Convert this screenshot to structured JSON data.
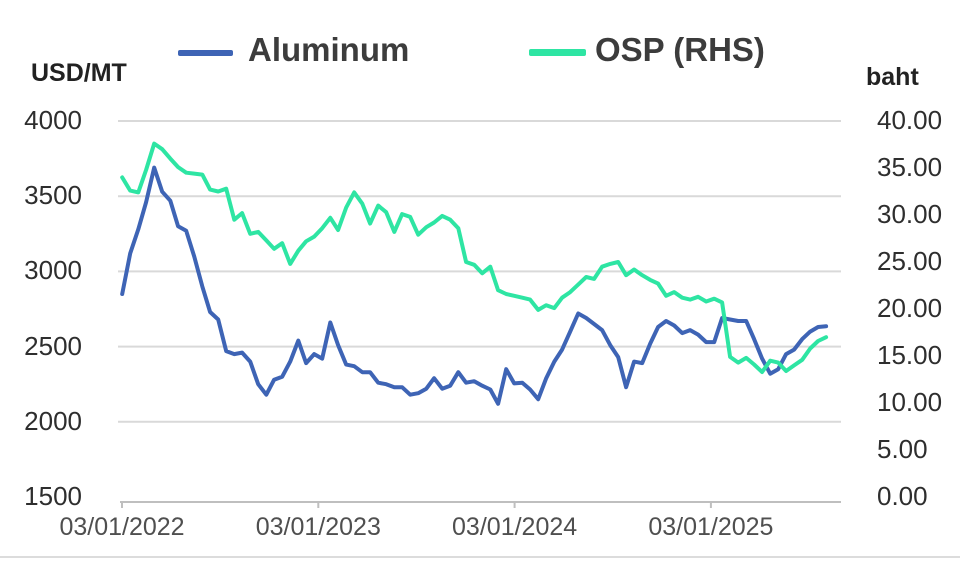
{
  "legend": {
    "items": [
      {
        "label": "Aluminum",
        "color": "#3e64b5"
      },
      {
        "label": "OSP (RHS)",
        "color": "#2ee5a3"
      }
    ]
  },
  "axes": {
    "left": {
      "unit": "USD/MT",
      "tick_labels": [
        "4000",
        "3500",
        "3000",
        "2500",
        "2000",
        "1500"
      ],
      "tick_values": [
        4000,
        3500,
        3000,
        2500,
        2000,
        1500
      ],
      "range": [
        1500,
        4000
      ]
    },
    "right": {
      "unit": "baht",
      "tick_labels": [
        "40.00",
        "35.00",
        "30.00",
        "25.00",
        "20.00",
        "15.00",
        "10.00",
        "5.00",
        "0.00"
      ],
      "tick_values": [
        40,
        35,
        30,
        25,
        20,
        15,
        10,
        5,
        0
      ],
      "range": [
        0,
        40
      ]
    },
    "x": {
      "tick_labels": [
        "03/01/2022",
        "03/01/2023",
        "03/01/2024",
        "03/01/2025"
      ],
      "tick_years": [
        2022.163,
        2023.163,
        2024.163,
        2025.163
      ]
    }
  },
  "chart_data": {
    "type": "line",
    "title": "",
    "xlabel": "",
    "grid": true,
    "legend_position": "top",
    "left_ylim": [
      1500,
      4000
    ],
    "right_ylim": [
      0,
      40
    ],
    "x_years": [
      2022.164,
      2022.205,
      2022.246,
      2022.286,
      2022.327,
      2022.368,
      2022.409,
      2022.449,
      2022.49,
      2022.531,
      2022.572,
      2022.612,
      2022.653,
      2022.694,
      2022.735,
      2022.775,
      2022.816,
      2022.857,
      2022.898,
      2022.938,
      2022.979,
      2023.02,
      2023.061,
      2023.101,
      2023.142,
      2023.183,
      2023.224,
      2023.264,
      2023.305,
      2023.346,
      2023.387,
      2023.427,
      2023.468,
      2023.509,
      2023.55,
      2023.59,
      2023.631,
      2023.672,
      2023.713,
      2023.753,
      2023.794,
      2023.835,
      2023.876,
      2023.916,
      2023.957,
      2023.998,
      2024.039,
      2024.079,
      2024.12,
      2024.161,
      2024.202,
      2024.242,
      2024.283,
      2024.324,
      2024.365,
      2024.405,
      2024.446,
      2024.487,
      2024.528,
      2024.568,
      2024.609,
      2024.65,
      2024.691,
      2024.731,
      2024.772,
      2024.813,
      2024.854,
      2024.894,
      2024.935,
      2024.976,
      2025.017,
      2025.057,
      2025.098,
      2025.139,
      2025.18,
      2025.22,
      2025.261,
      2025.302,
      2025.343,
      2025.383,
      2025.424,
      2025.465,
      2025.506,
      2025.546,
      2025.587,
      2025.628,
      2025.669,
      2025.709,
      2025.75
    ],
    "series": [
      {
        "name": "Aluminum",
        "axis": "left",
        "unit": "USD/MT",
        "color": "#3e64b5",
        "values": [
          2850,
          3120,
          3280,
          3460,
          3690,
          3530,
          3470,
          3300,
          3270,
          3100,
          2900,
          2730,
          2680,
          2470,
          2450,
          2460,
          2400,
          2250,
          2180,
          2280,
          2300,
          2400,
          2540,
          2390,
          2450,
          2420,
          2660,
          2510,
          2380,
          2370,
          2330,
          2330,
          2260,
          2250,
          2230,
          2230,
          2180,
          2190,
          2220,
          2290,
          2220,
          2240,
          2330,
          2260,
          2270,
          2240,
          2215,
          2120,
          2350,
          2255,
          2260,
          2215,
          2150,
          2290,
          2400,
          2480,
          2600,
          2720,
          2690,
          2650,
          2610,
          2510,
          2430,
          2230,
          2400,
          2390,
          2520,
          2630,
          2670,
          2640,
          2590,
          2610,
          2580,
          2530,
          2530,
          2690,
          2680,
          2670,
          2670,
          2550,
          2420,
          2320,
          2350,
          2450,
          2480,
          2550,
          2600,
          2630,
          2635
        ]
      },
      {
        "name": "OSP (RHS)",
        "axis": "right",
        "unit": "baht",
        "color": "#2ee5a3",
        "values": [
          34.0,
          32.6,
          32.4,
          34.8,
          37.6,
          37.0,
          36.0,
          35.1,
          34.5,
          34.4,
          34.3,
          32.7,
          32.5,
          32.8,
          29.5,
          30.2,
          28.0,
          28.2,
          27.3,
          26.4,
          27.0,
          24.8,
          26.2,
          27.2,
          27.7,
          28.6,
          29.7,
          28.4,
          30.8,
          32.4,
          31.2,
          29.1,
          31.0,
          30.3,
          28.2,
          30.1,
          29.8,
          27.9,
          28.7,
          29.2,
          29.9,
          29.5,
          28.6,
          25.0,
          24.7,
          23.8,
          24.5,
          22.0,
          21.6,
          21.4,
          21.2,
          21.0,
          19.9,
          20.4,
          20.1,
          21.2,
          21.8,
          22.6,
          23.4,
          23.2,
          24.5,
          24.8,
          25.0,
          23.6,
          24.2,
          23.6,
          23.1,
          22.7,
          21.4,
          21.8,
          21.2,
          21.0,
          21.3,
          20.8,
          21.1,
          20.7,
          14.9,
          14.3,
          14.8,
          14.1,
          13.3,
          14.5,
          14.3,
          13.4,
          14.0,
          14.6,
          15.8,
          16.6,
          17.0
        ]
      }
    ]
  },
  "colors": {
    "gridline": "#d9d9d9",
    "axis_line": "#bfbfbf",
    "background": "#ffffff"
  }
}
